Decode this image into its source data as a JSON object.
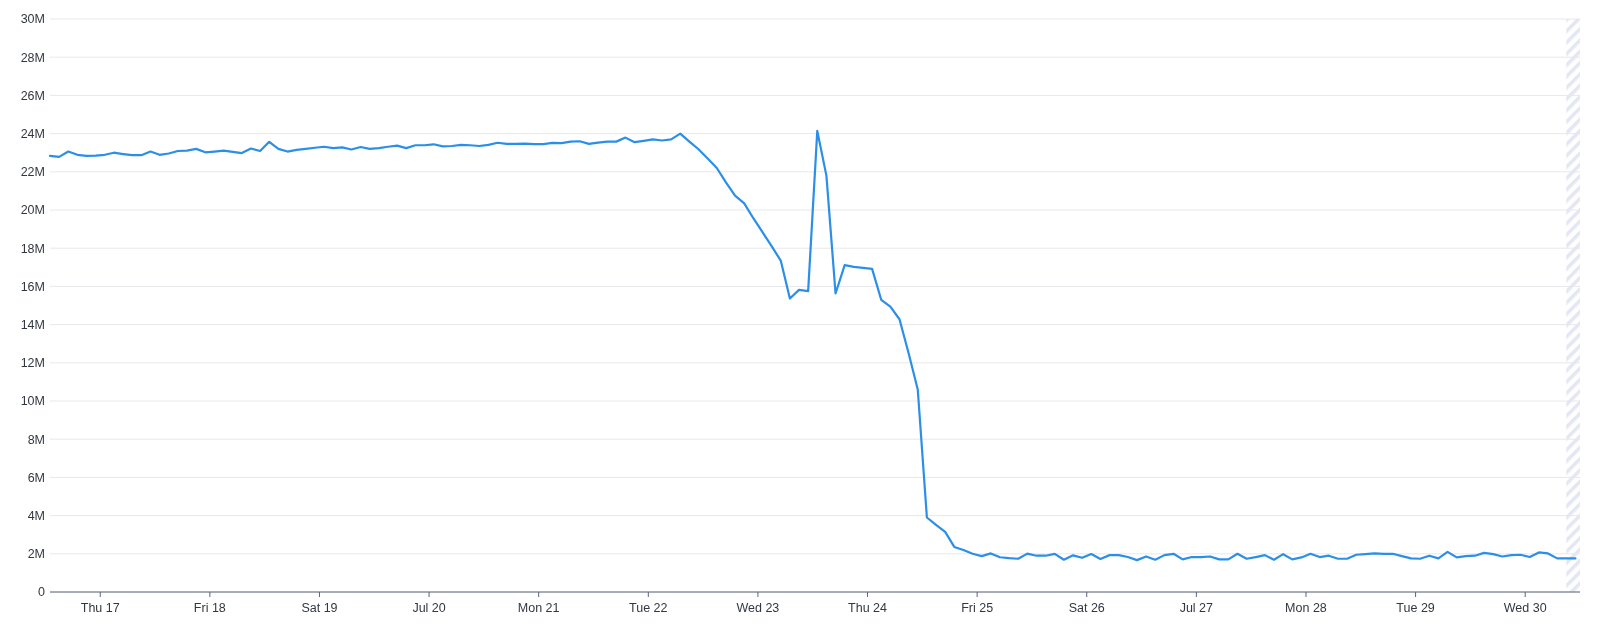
{
  "chart_data": {
    "type": "line",
    "x": [
      "--07-16T13:00",
      "--07-16T15:00",
      "--07-16T17:00",
      "--07-16T19:00",
      "--07-16T21:00",
      "--07-16T23:00",
      "--07-17T01:00",
      "--07-17T03:00",
      "--07-17T05:00",
      "--07-17T07:00",
      "--07-17T09:00",
      "--07-17T11:00",
      "--07-17T13:00",
      "--07-17T15:00",
      "--07-17T17:00",
      "--07-17T19:00",
      "--07-17T21:00",
      "--07-17T23:00",
      "--07-18T01:00",
      "--07-18T03:00",
      "--07-18T05:00",
      "--07-18T07:00",
      "--07-18T09:00",
      "--07-18T11:00",
      "--07-18T13:00",
      "--07-18T15:00",
      "--07-18T17:00",
      "--07-18T19:00",
      "--07-18T21:00",
      "--07-18T23:00",
      "--07-19T01:00",
      "--07-19T03:00",
      "--07-19T05:00",
      "--07-19T07:00",
      "--07-19T09:00",
      "--07-19T11:00",
      "--07-19T13:00",
      "--07-19T15:00",
      "--07-19T17:00",
      "--07-19T19:00",
      "--07-19T21:00",
      "--07-19T23:00",
      "--07-20T01:00",
      "--07-20T03:00",
      "--07-20T05:00",
      "--07-20T07:00",
      "--07-20T09:00",
      "--07-20T11:00",
      "--07-20T13:00",
      "--07-20T15:00",
      "--07-20T17:00",
      "--07-20T19:00",
      "--07-20T21:00",
      "--07-20T23:00",
      "--07-21T01:00",
      "--07-21T03:00",
      "--07-21T05:00",
      "--07-21T07:00",
      "--07-21T09:00",
      "--07-21T11:00",
      "--07-21T13:00",
      "--07-21T15:00",
      "--07-21T17:00",
      "--07-21T19:00",
      "--07-21T21:00",
      "--07-21T23:00",
      "--07-22T01:00",
      "--07-22T03:00",
      "--07-22T05:00",
      "--07-22T07:00",
      "--07-22T09:00",
      "--07-22T11:00",
      "--07-22T13:00",
      "--07-22T15:00",
      "--07-22T17:00",
      "--07-22T19:00",
      "--07-22T21:00",
      "--07-22T23:00",
      "--07-23T01:00",
      "--07-23T03:00",
      "--07-23T05:00",
      "--07-23T07:00",
      "--07-23T09:00",
      "--07-23T11:00",
      "--07-23T13:00",
      "--07-23T15:00",
      "--07-23T17:00",
      "--07-23T19:00",
      "--07-23T21:00",
      "--07-23T23:00",
      "--07-24T01:00",
      "--07-24T03:00",
      "--07-24T05:00",
      "--07-24T07:00",
      "--07-24T09:00",
      "--07-24T11:00",
      "--07-24T13:00",
      "--07-24T15:00",
      "--07-24T17:00",
      "--07-24T19:00",
      "--07-24T21:00",
      "--07-24T23:00",
      "--07-25T01:00",
      "--07-25T03:00",
      "--07-25T05:00",
      "--07-25T07:00",
      "--07-25T09:00",
      "--07-25T11:00",
      "--07-25T13:00",
      "--07-25T15:00",
      "--07-25T17:00",
      "--07-25T19:00",
      "--07-25T21:00",
      "--07-25T23:00",
      "--07-26T01:00",
      "--07-26T03:00",
      "--07-26T05:00",
      "--07-26T07:00",
      "--07-26T09:00",
      "--07-26T11:00",
      "--07-26T13:00",
      "--07-26T15:00",
      "--07-26T17:00",
      "--07-26T19:00",
      "--07-26T21:00",
      "--07-26T23:00",
      "--07-27T01:00",
      "--07-27T03:00",
      "--07-27T05:00",
      "--07-27T07:00",
      "--07-27T09:00",
      "--07-27T11:00",
      "--07-27T13:00",
      "--07-27T15:00",
      "--07-27T17:00",
      "--07-27T19:00",
      "--07-27T21:00",
      "--07-27T23:00",
      "--07-28T01:00",
      "--07-28T03:00",
      "--07-28T05:00",
      "--07-28T07:00",
      "--07-28T09:00",
      "--07-28T11:00",
      "--07-28T13:00",
      "--07-28T15:00",
      "--07-28T17:00",
      "--07-28T19:00",
      "--07-28T21:00",
      "--07-28T23:00",
      "--07-29T01:00",
      "--07-29T03:00",
      "--07-29T05:00",
      "--07-29T07:00",
      "--07-29T09:00",
      "--07-29T11:00",
      "--07-29T13:00",
      "--07-29T15:00",
      "--07-29T17:00",
      "--07-29T19:00",
      "--07-29T21:00",
      "--07-29T23:00",
      "--07-30T01:00",
      "--07-30T03:00",
      "--07-30T05:00",
      "--07-30T07:00",
      "--07-30T09:00",
      "--07-30T11:00"
    ],
    "series": [
      {
        "color": "#2b8fe8",
        "values": [
          22.83,
          22.78,
          23.06,
          22.89,
          22.83,
          22.85,
          22.89,
          23.0,
          22.93,
          22.87,
          22.87,
          23.06,
          22.89,
          22.96,
          23.09,
          23.11,
          23.2,
          23.02,
          23.06,
          23.11,
          23.04,
          22.98,
          23.22,
          23.09,
          23.57,
          23.2,
          23.06,
          23.15,
          23.2,
          23.26,
          23.31,
          23.24,
          23.28,
          23.17,
          23.3,
          23.2,
          23.24,
          23.31,
          23.37,
          23.24,
          23.39,
          23.39,
          23.44,
          23.33,
          23.35,
          23.41,
          23.39,
          23.35,
          23.41,
          23.52,
          23.46,
          23.46,
          23.48,
          23.45,
          23.45,
          23.51,
          23.5,
          23.58,
          23.6,
          23.46,
          23.53,
          23.58,
          23.58,
          23.79,
          23.55,
          23.62,
          23.7,
          23.64,
          23.7,
          24.0,
          23.58,
          23.18,
          22.7,
          22.2,
          21.45,
          20.75,
          20.35,
          19.57,
          18.84,
          18.11,
          17.35,
          15.37,
          15.82,
          15.75,
          24.14,
          21.8,
          15.63,
          17.11,
          17.02,
          16.97,
          16.92,
          15.3,
          14.94,
          14.28,
          12.5,
          10.6,
          3.9,
          3.52,
          3.15,
          2.36,
          2.2,
          2.0,
          1.88,
          2.02,
          1.82,
          1.77,
          1.74,
          2.01,
          1.9,
          1.9,
          2.0,
          1.69,
          1.92,
          1.79,
          1.99,
          1.73,
          1.93,
          1.93,
          1.83,
          1.67,
          1.86,
          1.69,
          1.93,
          2.0,
          1.71,
          1.83,
          1.83,
          1.86,
          1.71,
          1.71,
          2.0,
          1.74,
          1.83,
          1.93,
          1.69,
          1.98,
          1.71,
          1.81,
          2.0,
          1.83,
          1.9,
          1.74,
          1.74,
          1.95,
          1.98,
          2.02,
          2.0,
          2.0,
          1.88,
          1.76,
          1.74,
          1.9,
          1.76,
          2.1,
          1.81,
          1.88,
          1.9,
          2.05,
          1.98,
          1.86,
          1.93,
          1.95,
          1.83,
          2.07,
          2.02,
          1.76,
          1.76,
          1.76
        ]
      }
    ],
    "xlim": [
      "--07-16T13:00",
      "--07-30T12:00"
    ],
    "xticks": [
      {
        "value": "--07-17",
        "label": "Thu 17"
      },
      {
        "value": "--07-18",
        "label": "Fri 18"
      },
      {
        "value": "--07-19",
        "label": "Sat 19"
      },
      {
        "value": "--07-20",
        "label": "Jul 20"
      },
      {
        "value": "--07-21",
        "label": "Mon 21"
      },
      {
        "value": "--07-22",
        "label": "Tue 22"
      },
      {
        "value": "--07-23",
        "label": "Wed 23"
      },
      {
        "value": "--07-24",
        "label": "Thu 24"
      },
      {
        "value": "--07-25",
        "label": "Fri 25"
      },
      {
        "value": "--07-26",
        "label": "Sat 26"
      },
      {
        "value": "--07-27",
        "label": "Jul 27"
      },
      {
        "value": "--07-28",
        "label": "Mon 28"
      },
      {
        "value": "--07-29",
        "label": "Tue 29"
      },
      {
        "value": "--07-30",
        "label": "Wed 30"
      }
    ],
    "ylim": [
      0,
      30
    ],
    "yticks": [
      0,
      {
        "value": 2,
        "label": "2M"
      },
      {
        "value": 4,
        "label": "4M"
      },
      {
        "value": 6,
        "label": "6M"
      },
      {
        "value": 8,
        "label": "8M"
      },
      {
        "value": 10,
        "label": "10M"
      },
      {
        "value": 12,
        "label": "12M"
      },
      {
        "value": 14,
        "label": "14M"
      },
      {
        "value": 16,
        "label": "16M"
      },
      {
        "value": 18,
        "label": "18M"
      },
      {
        "value": 20,
        "label": "20M"
      },
      {
        "value": 22,
        "label": "22M"
      },
      {
        "value": 24,
        "label": "24M"
      },
      {
        "value": 26,
        "label": "26M"
      },
      {
        "value": 28,
        "label": "28M"
      },
      {
        "value": 30,
        "label": "30M"
      }
    ],
    "grid": "y",
    "bands": [
      {
        "axis": "x",
        "from": "--07-30T09:00",
        "to": "--07-30T12:00",
        "color": "#e3e6f3"
      }
    ],
    "line_style": "solid"
  }
}
